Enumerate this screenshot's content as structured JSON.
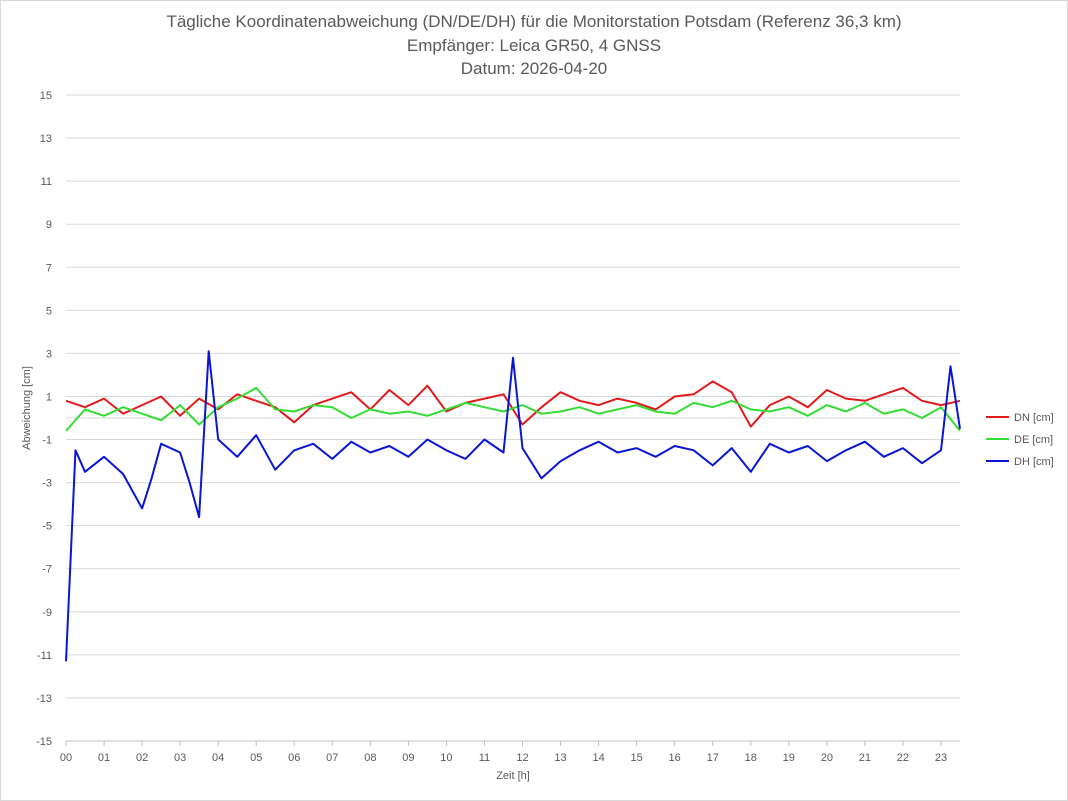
{
  "chart_data": {
    "type": "line",
    "title": "Tägliche Koordinatenabweichung (DN/DE/DH) für die Monitorstation Potsdam (Referenz 36,3 km)",
    "subtitle": "Empfänger: Leica GR50, 4 GNSS",
    "date_line": "Datum: 2026-04-20",
    "xlabel": "Zeit [h]",
    "ylabel": "Abweichung [cm]",
    "xlim": [
      0,
      23.5
    ],
    "ylim": [
      -15,
      15
    ],
    "y_ticks": [
      15,
      13,
      11,
      9,
      7,
      5,
      3,
      1,
      -1,
      -3,
      -5,
      -7,
      -9,
      -11,
      -13,
      -15
    ],
    "x_ticks": [
      "00",
      "01",
      "02",
      "03",
      "04",
      "05",
      "06",
      "07",
      "08",
      "09",
      "10",
      "11",
      "12",
      "13",
      "14",
      "15",
      "16",
      "17",
      "18",
      "19",
      "20",
      "21",
      "22",
      "23"
    ],
    "grid": true,
    "legend_position": "right",
    "series": [
      {
        "name": "DN [cm]",
        "color": "#e31a1c",
        "x": [
          0,
          0.5,
          1,
          1.5,
          2,
          2.5,
          3,
          3.5,
          4,
          4.5,
          5,
          5.5,
          6,
          6.5,
          7,
          7.5,
          8,
          8.5,
          9,
          9.5,
          10,
          10.5,
          11,
          11.5,
          12,
          12.5,
          13,
          13.5,
          14,
          14.5,
          15,
          15.5,
          16,
          16.5,
          17,
          17.5,
          18,
          18.5,
          19,
          19.5,
          20,
          20.5,
          21,
          21.5,
          22,
          22.5,
          23,
          23.5
        ],
        "values": [
          0.8,
          0.5,
          0.9,
          0.2,
          0.6,
          1.0,
          0.1,
          0.9,
          0.4,
          1.1,
          0.8,
          0.5,
          -0.2,
          0.6,
          0.9,
          1.2,
          0.4,
          1.3,
          0.6,
          1.5,
          0.3,
          0.7,
          0.9,
          1.1,
          -0.3,
          0.5,
          1.2,
          0.8,
          0.6,
          0.9,
          0.7,
          0.4,
          1.0,
          1.1,
          1.7,
          1.2,
          -0.4,
          0.6,
          1.0,
          0.5,
          1.3,
          0.9,
          0.8,
          1.1,
          1.4,
          0.8,
          0.6,
          0.8
        ]
      },
      {
        "name": "DE [cm]",
        "color": "#33dd33",
        "x": [
          0,
          0.5,
          1,
          1.5,
          2,
          2.5,
          3,
          3.5,
          4,
          4.5,
          5,
          5.5,
          6,
          6.5,
          7,
          7.5,
          8,
          8.5,
          9,
          9.5,
          10,
          10.5,
          11,
          11.5,
          12,
          12.5,
          13,
          13.5,
          14,
          14.5,
          15,
          15.5,
          16,
          16.5,
          17,
          17.5,
          18,
          18.5,
          19,
          19.5,
          20,
          20.5,
          21,
          21.5,
          22,
          22.5,
          23,
          23.5
        ],
        "values": [
          -0.6,
          0.4,
          0.1,
          0.5,
          0.2,
          -0.1,
          0.6,
          -0.3,
          0.5,
          0.9,
          1.4,
          0.4,
          0.3,
          0.6,
          0.5,
          0.0,
          0.4,
          0.2,
          0.3,
          0.1,
          0.4,
          0.7,
          0.5,
          0.3,
          0.6,
          0.2,
          0.3,
          0.5,
          0.2,
          0.4,
          0.6,
          0.3,
          0.2,
          0.7,
          0.5,
          0.8,
          0.4,
          0.3,
          0.5,
          0.1,
          0.6,
          0.3,
          0.7,
          0.2,
          0.4,
          0.0,
          0.5,
          -0.6
        ]
      },
      {
        "name": "DH [cm]",
        "color": "#0a16d6",
        "x": [
          0,
          0.25,
          0.5,
          1,
          1.5,
          2,
          2.25,
          2.5,
          3,
          3.25,
          3.5,
          3.75,
          4,
          4.5,
          5,
          5.5,
          6,
          6.5,
          7,
          7.5,
          8,
          8.5,
          9,
          9.5,
          10,
          10.5,
          11,
          11.5,
          11.75,
          12,
          12.5,
          13,
          13.5,
          14,
          14.5,
          15,
          15.5,
          16,
          16.5,
          17,
          17.5,
          18,
          18.5,
          19,
          19.5,
          20,
          20.5,
          21,
          21.5,
          22,
          22.5,
          23,
          23.25,
          23.5
        ],
        "values": [
          -11.3,
          -1.5,
          -2.5,
          -1.8,
          -2.6,
          -4.2,
          -2.8,
          -1.2,
          -1.6,
          -3.0,
          -4.6,
          3.1,
          -1.0,
          -1.8,
          -0.8,
          -2.4,
          -1.5,
          -1.2,
          -1.9,
          -1.1,
          -1.6,
          -1.3,
          -1.8,
          -1.0,
          -1.5,
          -1.9,
          -1.0,
          -1.6,
          2.8,
          -1.4,
          -2.8,
          -2.0,
          -1.5,
          -1.1,
          -1.6,
          -1.4,
          -1.8,
          -1.3,
          -1.5,
          -2.2,
          -1.4,
          -2.5,
          -1.2,
          -1.6,
          -1.3,
          -2.0,
          -1.5,
          -1.1,
          -1.8,
          -1.4,
          -2.1,
          -1.5,
          2.4,
          -0.5
        ]
      }
    ]
  }
}
